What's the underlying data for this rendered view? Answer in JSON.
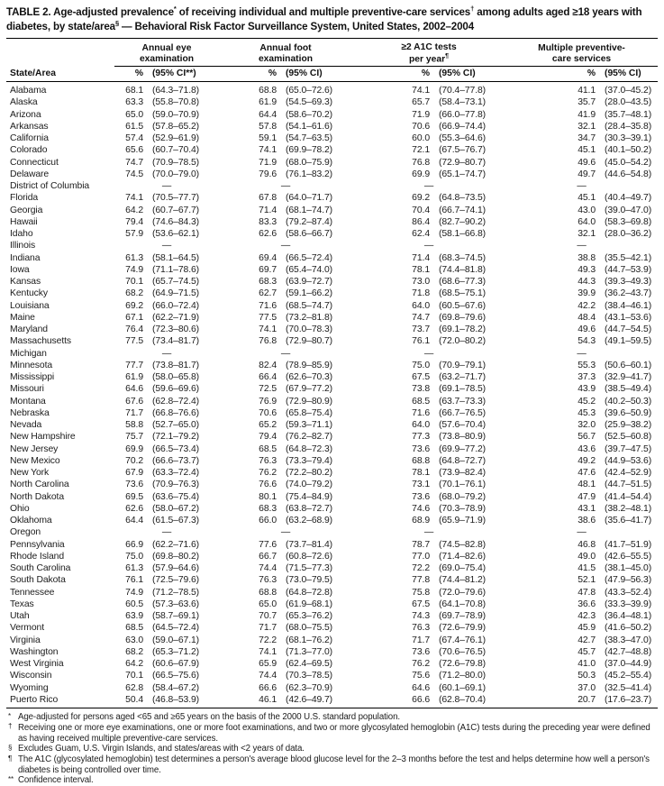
{
  "title": {
    "segments": [
      {
        "text": "TABLE 2. Age-adjusted prevalence"
      },
      {
        "sup": "*"
      },
      {
        "text": " of receiving individual and multiple preventive-care services"
      },
      {
        "sup": "†"
      },
      {
        "text": " among adults aged ≥18 years with diabetes, by state/area"
      },
      {
        "sup": "§"
      },
      {
        "text": " — Behavioral Risk Factor Surveillance System, United States, 2002–2004"
      }
    ]
  },
  "columns": {
    "state_header": "State/Area",
    "groups": [
      {
        "line1": "Annual eye",
        "line2": "examination",
        "line2_sup": "",
        "pct": "%",
        "ci": "(95% CI**)"
      },
      {
        "line1": "Annual foot",
        "line2": "examination",
        "line2_sup": "",
        "pct": "%",
        "ci": "(95% CI)"
      },
      {
        "line1": "≥2 A1C tests",
        "line2": "per year",
        "line2_sup": "¶",
        "pct": "%",
        "ci": "(95% CI)"
      },
      {
        "line1": "Multiple preventive-",
        "line2": "care services",
        "line2_sup": "",
        "pct": "%",
        "ci": "(95% CI)"
      }
    ]
  },
  "dash_char": "—",
  "rows": [
    {
      "state": "Alabama",
      "eye_pct": "68.1",
      "eye_ci": "(64.3–71.8)",
      "foot_pct": "68.8",
      "foot_ci": "(65.0–72.6)",
      "a1c_pct": "74.1",
      "a1c_ci": "(70.4–77.8)",
      "multi_pct": "41.1",
      "multi_ci": "(37.0–45.2)"
    },
    {
      "state": "Alaska",
      "eye_pct": "63.3",
      "eye_ci": "(55.8–70.8)",
      "foot_pct": "61.9",
      "foot_ci": "(54.5–69.3)",
      "a1c_pct": "65.7",
      "a1c_ci": "(58.4–73.1)",
      "multi_pct": "35.7",
      "multi_ci": "(28.0–43.5)"
    },
    {
      "state": "Arizona",
      "eye_pct": "65.0",
      "eye_ci": "(59.0–70.9)",
      "foot_pct": "64.4",
      "foot_ci": "(58.6–70.2)",
      "a1c_pct": "71.9",
      "a1c_ci": "(66.0–77.8)",
      "multi_pct": "41.9",
      "multi_ci": "(35.7–48.1)"
    },
    {
      "state": "Arkansas",
      "eye_pct": "61.5",
      "eye_ci": "(57.8–65.2)",
      "foot_pct": "57.8",
      "foot_ci": "(54.1–61.6)",
      "a1c_pct": "70.6",
      "a1c_ci": "(66.9–74.4)",
      "multi_pct": "32.1",
      "multi_ci": "(28.4–35.8)"
    },
    {
      "state": "California",
      "eye_pct": "57.4",
      "eye_ci": "(52.9–61.9)",
      "foot_pct": "59.1",
      "foot_ci": "(54.7–63.5)",
      "a1c_pct": "60.0",
      "a1c_ci": "(55.3–64.6)",
      "multi_pct": "34.7",
      "multi_ci": "(30.3–39.1)"
    },
    {
      "state": "Colorado",
      "eye_pct": "65.6",
      "eye_ci": "(60.7–70.4)",
      "foot_pct": "74.1",
      "foot_ci": "(69.9–78.2)",
      "a1c_pct": "72.1",
      "a1c_ci": "(67.5–76.7)",
      "multi_pct": "45.1",
      "multi_ci": "(40.1–50.2)"
    },
    {
      "state": "Connecticut",
      "eye_pct": "74.7",
      "eye_ci": "(70.9–78.5)",
      "foot_pct": "71.9",
      "foot_ci": "(68.0–75.9)",
      "a1c_pct": "76.8",
      "a1c_ci": "(72.9–80.7)",
      "multi_pct": "49.6",
      "multi_ci": "(45.0–54.2)"
    },
    {
      "state": "Delaware",
      "eye_pct": "74.5",
      "eye_ci": "(70.0–79.0)",
      "foot_pct": "79.6",
      "foot_ci": "(76.1–83.2)",
      "a1c_pct": "69.9",
      "a1c_ci": "(65.1–74.7)",
      "multi_pct": "49.7",
      "multi_ci": "(44.6–54.8)"
    },
    {
      "state": "District of Columbia",
      "dash": true
    },
    {
      "state": "Florida",
      "eye_pct": "74.1",
      "eye_ci": "(70.5–77.7)",
      "foot_pct": "67.8",
      "foot_ci": "(64.0–71.7)",
      "a1c_pct": "69.2",
      "a1c_ci": "(64.8–73.5)",
      "multi_pct": "45.1",
      "multi_ci": "(40.4–49.7)"
    },
    {
      "state": "Georgia",
      "eye_pct": "64.2",
      "eye_ci": "(60.7–67.7)",
      "foot_pct": "71.4",
      "foot_ci": "(68.1–74.7)",
      "a1c_pct": "70.4",
      "a1c_ci": "(66.7–74.1)",
      "multi_pct": "43.0",
      "multi_ci": "(39.0–47.0)"
    },
    {
      "state": "Hawaii",
      "eye_pct": "79.4",
      "eye_ci": "(74.6–84.3)",
      "foot_pct": "83.3",
      "foot_ci": "(79.2–87.4)",
      "a1c_pct": "86.4",
      "a1c_ci": "(82.7–90.2)",
      "multi_pct": "64.0",
      "multi_ci": "(58.3–69.8)"
    },
    {
      "state": "Idaho",
      "eye_pct": "57.9",
      "eye_ci": "(53.6–62.1)",
      "foot_pct": "62.6",
      "foot_ci": "(58.6–66.7)",
      "a1c_pct": "62.4",
      "a1c_ci": "(58.1–66.8)",
      "multi_pct": "32.1",
      "multi_ci": "(28.0–36.2)"
    },
    {
      "state": "Illinois",
      "dash": true
    },
    {
      "state": "Indiana",
      "eye_pct": "61.3",
      "eye_ci": "(58.1–64.5)",
      "foot_pct": "69.4",
      "foot_ci": "(66.5–72.4)",
      "a1c_pct": "71.4",
      "a1c_ci": "(68.3–74.5)",
      "multi_pct": "38.8",
      "multi_ci": "(35.5–42.1)"
    },
    {
      "state": "Iowa",
      "eye_pct": "74.9",
      "eye_ci": "(71.1–78.6)",
      "foot_pct": "69.7",
      "foot_ci": "(65.4–74.0)",
      "a1c_pct": "78.1",
      "a1c_ci": "(74.4–81.8)",
      "multi_pct": "49.3",
      "multi_ci": "(44.7–53.9)"
    },
    {
      "state": "Kansas",
      "eye_pct": "70.1",
      "eye_ci": "(65.7–74.5)",
      "foot_pct": "68.3",
      "foot_ci": "(63.9–72.7)",
      "a1c_pct": "73.0",
      "a1c_ci": "(68.6–77.3)",
      "multi_pct": "44.3",
      "multi_ci": "(39.3–49.3)"
    },
    {
      "state": "Kentucky",
      "eye_pct": "68.2",
      "eye_ci": "(64.9–71.5)",
      "foot_pct": "62.7",
      "foot_ci": "(59.1–66.2)",
      "a1c_pct": "71.8",
      "a1c_ci": "(68.5–75.1)",
      "multi_pct": "39.9",
      "multi_ci": "(36.2–43.7)"
    },
    {
      "state": "Louisiana",
      "eye_pct": "69.2",
      "eye_ci": "(66.0–72.4)",
      "foot_pct": "71.6",
      "foot_ci": "(68.5–74.7)",
      "a1c_pct": "64.0",
      "a1c_ci": "(60.5–67.6)",
      "multi_pct": "42.2",
      "multi_ci": "(38.4–46.1)"
    },
    {
      "state": "Maine",
      "eye_pct": "67.1",
      "eye_ci": "(62.2–71.9)",
      "foot_pct": "77.5",
      "foot_ci": "(73.2–81.8)",
      "a1c_pct": "74.7",
      "a1c_ci": "(69.8–79.6)",
      "multi_pct": "48.4",
      "multi_ci": "(43.1–53.6)"
    },
    {
      "state": "Maryland",
      "eye_pct": "76.4",
      "eye_ci": "(72.3–80.6)",
      "foot_pct": "74.1",
      "foot_ci": "(70.0–78.3)",
      "a1c_pct": "73.7",
      "a1c_ci": "(69.1–78.2)",
      "multi_pct": "49.6",
      "multi_ci": "(44.7–54.5)"
    },
    {
      "state": "Massachusetts",
      "eye_pct": "77.5",
      "eye_ci": "(73.4–81.7)",
      "foot_pct": "76.8",
      "foot_ci": "(72.9–80.7)",
      "a1c_pct": "76.1",
      "a1c_ci": "(72.0–80.2)",
      "multi_pct": "54.3",
      "multi_ci": "(49.1–59.5)"
    },
    {
      "state": "Michigan",
      "dash": true
    },
    {
      "state": "Minnesota",
      "eye_pct": "77.7",
      "eye_ci": "(73.8–81.7)",
      "foot_pct": "82.4",
      "foot_ci": "(78.9–85.9)",
      "a1c_pct": "75.0",
      "a1c_ci": "(70.9–79.1)",
      "multi_pct": "55.3",
      "multi_ci": "(50.6–60.1)"
    },
    {
      "state": "Mississippi",
      "eye_pct": "61.9",
      "eye_ci": "(58.0–65.8)",
      "foot_pct": "66.4",
      "foot_ci": "(62.6–70.3)",
      "a1c_pct": "67.5",
      "a1c_ci": "(63.2–71.7)",
      "multi_pct": "37.3",
      "multi_ci": "(32.9–41.7)"
    },
    {
      "state": "Missouri",
      "eye_pct": "64.6",
      "eye_ci": "(59.6–69.6)",
      "foot_pct": "72.5",
      "foot_ci": "(67.9–77.2)",
      "a1c_pct": "73.8",
      "a1c_ci": "(69.1–78.5)",
      "multi_pct": "43.9",
      "multi_ci": "(38.5–49.4)"
    },
    {
      "state": "Montana",
      "eye_pct": "67.6",
      "eye_ci": "(62.8–72.4)",
      "foot_pct": "76.9",
      "foot_ci": "(72.9–80.9)",
      "a1c_pct": "68.5",
      "a1c_ci": "(63.7–73.3)",
      "multi_pct": "45.2",
      "multi_ci": "(40.2–50.3)"
    },
    {
      "state": "Nebraska",
      "eye_pct": "71.7",
      "eye_ci": "(66.8–76.6)",
      "foot_pct": "70.6",
      "foot_ci": "(65.8–75.4)",
      "a1c_pct": "71.6",
      "a1c_ci": "(66.7–76.5)",
      "multi_pct": "45.3",
      "multi_ci": "(39.6–50.9)"
    },
    {
      "state": "Nevada",
      "eye_pct": "58.8",
      "eye_ci": "(52.7–65.0)",
      "foot_pct": "65.2",
      "foot_ci": "(59.3–71.1)",
      "a1c_pct": "64.0",
      "a1c_ci": "(57.6–70.4)",
      "multi_pct": "32.0",
      "multi_ci": "(25.9–38.2)"
    },
    {
      "state": "New Hampshire",
      "eye_pct": "75.7",
      "eye_ci": "(72.1–79.2)",
      "foot_pct": "79.4",
      "foot_ci": "(76.2–82.7)",
      "a1c_pct": "77.3",
      "a1c_ci": "(73.8–80.9)",
      "multi_pct": "56.7",
      "multi_ci": "(52.5–60.8)"
    },
    {
      "state": "New Jersey",
      "eye_pct": "69.9",
      "eye_ci": "(66.5–73.4)",
      "foot_pct": "68.5",
      "foot_ci": "(64.8–72.3)",
      "a1c_pct": "73.6",
      "a1c_ci": "(69.9–77.2)",
      "multi_pct": "43.6",
      "multi_ci": "(39.7–47.5)"
    },
    {
      "state": "New Mexico",
      "eye_pct": "70.2",
      "eye_ci": "(66.6–73.7)",
      "foot_pct": "76.3",
      "foot_ci": "(73.3–79.4)",
      "a1c_pct": "68.8",
      "a1c_ci": "(64.8–72.7)",
      "multi_pct": "49.2",
      "multi_ci": "(44.9–53.6)"
    },
    {
      "state": "New York",
      "eye_pct": "67.9",
      "eye_ci": "(63.3–72.4)",
      "foot_pct": "76.2",
      "foot_ci": "(72.2–80.2)",
      "a1c_pct": "78.1",
      "a1c_ci": "(73.9–82.4)",
      "multi_pct": "47.6",
      "multi_ci": "(42.4–52.9)"
    },
    {
      "state": "North Carolina",
      "eye_pct": "73.6",
      "eye_ci": "(70.9–76.3)",
      "foot_pct": "76.6",
      "foot_ci": "(74.0–79.2)",
      "a1c_pct": "73.1",
      "a1c_ci": "(70.1–76.1)",
      "multi_pct": "48.1",
      "multi_ci": "(44.7–51.5)"
    },
    {
      "state": "North Dakota",
      "eye_pct": "69.5",
      "eye_ci": "(63.6–75.4)",
      "foot_pct": "80.1",
      "foot_ci": "(75.4–84.9)",
      "a1c_pct": "73.6",
      "a1c_ci": "(68.0–79.2)",
      "multi_pct": "47.9",
      "multi_ci": "(41.4–54.4)"
    },
    {
      "state": "Ohio",
      "eye_pct": "62.6",
      "eye_ci": "(58.0–67.2)",
      "foot_pct": "68.3",
      "foot_ci": "(63.8–72.7)",
      "a1c_pct": "74.6",
      "a1c_ci": "(70.3–78.9)",
      "multi_pct": "43.1",
      "multi_ci": "(38.2–48.1)"
    },
    {
      "state": "Oklahoma",
      "eye_pct": "64.4",
      "eye_ci": "(61.5–67.3)",
      "foot_pct": "66.0",
      "foot_ci": "(63.2–68.9)",
      "a1c_pct": "68.9",
      "a1c_ci": "(65.9–71.9)",
      "multi_pct": "38.6",
      "multi_ci": "(35.6–41.7)"
    },
    {
      "state": "Oregon",
      "dash": true
    },
    {
      "state": "Pennsylvania",
      "eye_pct": "66.9",
      "eye_ci": "(62.2–71.6)",
      "foot_pct": "77.6",
      "foot_ci": "(73.7–81.4)",
      "a1c_pct": "78.7",
      "a1c_ci": "(74.5–82.8)",
      "multi_pct": "46.8",
      "multi_ci": "(41.7–51.9)"
    },
    {
      "state": "Rhode Island",
      "eye_pct": "75.0",
      "eye_ci": "(69.8–80.2)",
      "foot_pct": "66.7",
      "foot_ci": "(60.8–72.6)",
      "a1c_pct": "77.0",
      "a1c_ci": "(71.4–82.6)",
      "multi_pct": "49.0",
      "multi_ci": "(42.6–55.5)"
    },
    {
      "state": "South Carolina",
      "eye_pct": "61.3",
      "eye_ci": "(57.9–64.6)",
      "foot_pct": "74.4",
      "foot_ci": "(71.5–77.3)",
      "a1c_pct": "72.2",
      "a1c_ci": "(69.0–75.4)",
      "multi_pct": "41.5",
      "multi_ci": "(38.1–45.0)"
    },
    {
      "state": "South Dakota",
      "eye_pct": "76.1",
      "eye_ci": "(72.5–79.6)",
      "foot_pct": "76.3",
      "foot_ci": "(73.0–79.5)",
      "a1c_pct": "77.8",
      "a1c_ci": "(74.4–81.2)",
      "multi_pct": "52.1",
      "multi_ci": "(47.9–56.3)"
    },
    {
      "state": "Tennessee",
      "eye_pct": "74.9",
      "eye_ci": "(71.2–78.5)",
      "foot_pct": "68.8",
      "foot_ci": "(64.8–72.8)",
      "a1c_pct": "75.8",
      "a1c_ci": "(72.0–79.6)",
      "multi_pct": "47.8",
      "multi_ci": "(43.3–52.4)"
    },
    {
      "state": "Texas",
      "eye_pct": "60.5",
      "eye_ci": "(57.3–63.6)",
      "foot_pct": "65.0",
      "foot_ci": "(61.9–68.1)",
      "a1c_pct": "67.5",
      "a1c_ci": "(64.1–70.8)",
      "multi_pct": "36.6",
      "multi_ci": "(33.3–39.9)"
    },
    {
      "state": "Utah",
      "eye_pct": "63.9",
      "eye_ci": "(58.7–69.1)",
      "foot_pct": "70.7",
      "foot_ci": "(65.3–76.2)",
      "a1c_pct": "74.3",
      "a1c_ci": "(69.7–78.9)",
      "multi_pct": "42.3",
      "multi_ci": "(36.4–48.1)"
    },
    {
      "state": "Vermont",
      "eye_pct": "68.5",
      "eye_ci": "(64.5–72.4)",
      "foot_pct": "71.7",
      "foot_ci": "(68.0–75.5)",
      "a1c_pct": "76.3",
      "a1c_ci": "(72.6–79.9)",
      "multi_pct": "45.9",
      "multi_ci": "(41.6–50.2)"
    },
    {
      "state": "Virginia",
      "eye_pct": "63.0",
      "eye_ci": "(59.0–67.1)",
      "foot_pct": "72.2",
      "foot_ci": "(68.1–76.2)",
      "a1c_pct": "71.7",
      "a1c_ci": "(67.4–76.1)",
      "multi_pct": "42.7",
      "multi_ci": "(38.3–47.0)"
    },
    {
      "state": "Washington",
      "eye_pct": "68.2",
      "eye_ci": "(65.3–71.2)",
      "foot_pct": "74.1",
      "foot_ci": "(71.3–77.0)",
      "a1c_pct": "73.6",
      "a1c_ci": "(70.6–76.5)",
      "multi_pct": "45.7",
      "multi_ci": "(42.7–48.8)"
    },
    {
      "state": "West Virginia",
      "eye_pct": "64.2",
      "eye_ci": "(60.6–67.9)",
      "foot_pct": "65.9",
      "foot_ci": "(62.4–69.5)",
      "a1c_pct": "76.2",
      "a1c_ci": "(72.6–79.8)",
      "multi_pct": "41.0",
      "multi_ci": "(37.0–44.9)"
    },
    {
      "state": "Wisconsin",
      "eye_pct": "70.1",
      "eye_ci": "(66.5–75.6)",
      "foot_pct": "74.4",
      "foot_ci": "(70.3–78.5)",
      "a1c_pct": "75.6",
      "a1c_ci": "(71.2–80.0)",
      "multi_pct": "50.3",
      "multi_ci": "(45.2–55.4)"
    },
    {
      "state": "Wyoming",
      "eye_pct": "62.8",
      "eye_ci": "(58.4–67.2)",
      "foot_pct": "66.6",
      "foot_ci": "(62.3–70.9)",
      "a1c_pct": "64.6",
      "a1c_ci": "(60.1–69.1)",
      "multi_pct": "37.0",
      "multi_ci": "(32.5–41.4)"
    },
    {
      "state": "Puerto Rico",
      "eye_pct": "50.4",
      "eye_ci": "(46.8–53.9)",
      "foot_pct": "46.1",
      "foot_ci": "(42.6–49.7)",
      "a1c_pct": "66.6",
      "a1c_ci": "(62.8–70.4)",
      "multi_pct": "20.7",
      "multi_ci": "(17.6–23.7)"
    }
  ],
  "footnotes": [
    {
      "sym": "*",
      "text": "Age-adjusted for persons aged <65 and ≥65 years on the basis of the 2000 U.S. standard population."
    },
    {
      "sym": "†",
      "text": "Receiving one or more eye examinations, one or more foot examinations, and two or more glycosylated hemoglobin (A1C) tests during the preceding year were defined as having received multiple preventive-care services."
    },
    {
      "sym": "§",
      "text": "Excludes Guam, U.S. Virgin Islands, and states/areas with <2 years of data."
    },
    {
      "sym": "¶",
      "text": "The A1C (glycosylated hemoglobin) test determines a person's average blood glucose level for the 2–3 months before the test and helps determine how well a person's diabetes is being controlled over time."
    },
    {
      "sym": "**",
      "text": "Confidence interval."
    }
  ]
}
